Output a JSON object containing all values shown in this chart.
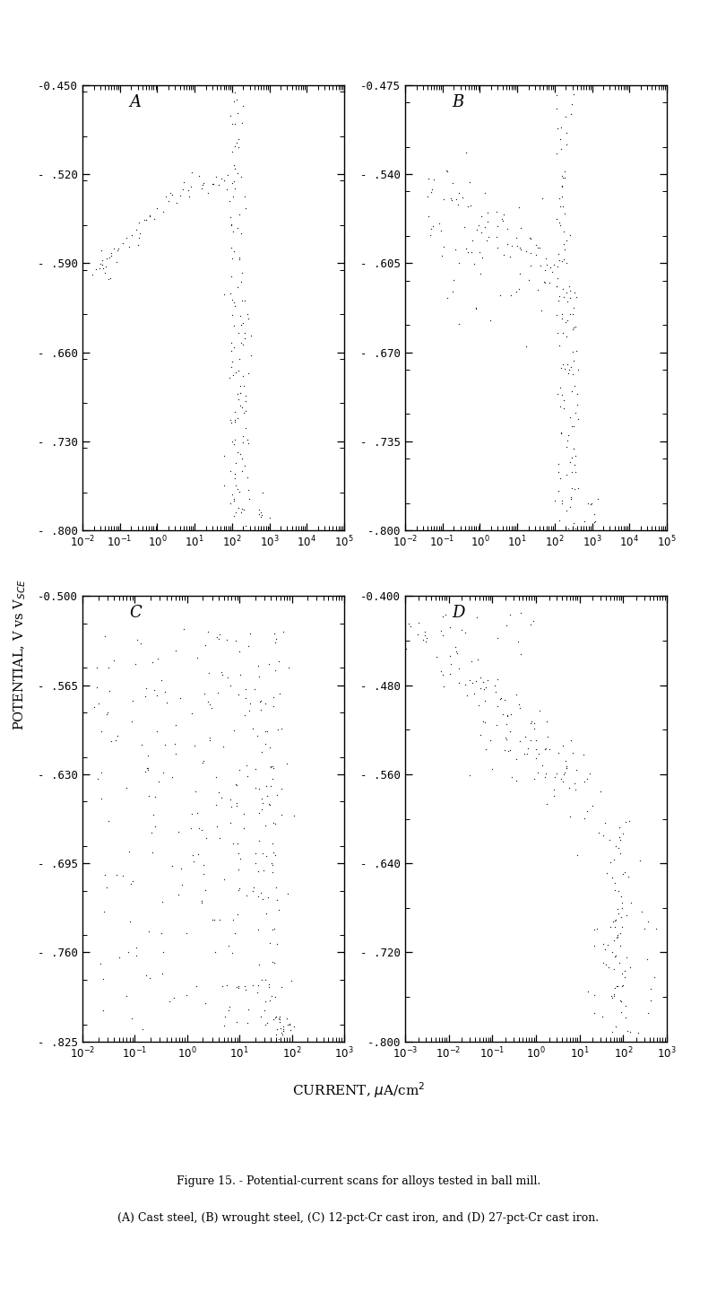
{
  "panels": [
    {
      "label": "A",
      "ylim": [
        -0.8,
        -0.45
      ],
      "yticks": [
        -0.8,
        -0.73,
        -0.66,
        -0.59,
        -0.52,
        -0.45
      ],
      "ytick_labels": [
        "- .800",
        "- .730",
        "- .660",
        "- .590",
        "- .520",
        "-0.450"
      ],
      "xlim_log": [
        -2,
        5
      ],
      "xticks_exp": [
        -2,
        -1,
        0,
        1,
        2,
        3,
        4,
        5
      ],
      "row": 0,
      "col": 0
    },
    {
      "label": "B",
      "ylim": [
        -0.8,
        -0.475
      ],
      "yticks": [
        -0.8,
        -0.735,
        -0.67,
        -0.605,
        -0.54,
        -0.475
      ],
      "ytick_labels": [
        "-.800",
        "- .735",
        "- .670",
        "- .605",
        "- .540",
        "-0.475"
      ],
      "xlim_log": [
        -2,
        5
      ],
      "xticks_exp": [
        -2,
        -1,
        0,
        1,
        2,
        3,
        4,
        5
      ],
      "row": 0,
      "col": 1
    },
    {
      "label": "C",
      "ylim": [
        -0.825,
        -0.5
      ],
      "yticks": [
        -0.825,
        -0.76,
        -0.695,
        -0.63,
        -0.565,
        -0.5
      ],
      "ytick_labels": [
        "- .825",
        "- .760",
        "- .695",
        "- .630",
        "- .565",
        "-0.500"
      ],
      "xlim_log": [
        -2,
        3
      ],
      "xticks_exp": [
        -2,
        -1,
        0,
        1,
        2,
        3
      ],
      "row": 1,
      "col": 0
    },
    {
      "label": "D",
      "ylim": [
        -0.8,
        -0.4
      ],
      "yticks": [
        -0.8,
        -0.72,
        -0.64,
        -0.56,
        -0.48,
        -0.4
      ],
      "ytick_labels": [
        "-.800",
        "- .720",
        "- .640",
        "- .560",
        "- .480",
        "-0.400"
      ],
      "xlim_log": [
        -3,
        3
      ],
      "xticks_exp": [
        -3,
        -2,
        -1,
        0,
        1,
        2,
        3
      ],
      "row": 1,
      "col": 1
    }
  ],
  "ylabel": "POTENTIAL, V vs V$_{SCE}$",
  "xlabel": "CURRENT, μA/cm$^2$",
  "fig_caption_line1": "Figure 15. - Potential-current scans for alloys tested in ball mill.",
  "fig_caption_line2": "(A) Cast steel, (B) wrought steel, (C) 12-pct-Cr cast iron, and (D) 27-pct-Cr cast iron.",
  "bg_color": "#ffffff",
  "dot_color": "#1a1a1a",
  "dot_size": 3.5
}
